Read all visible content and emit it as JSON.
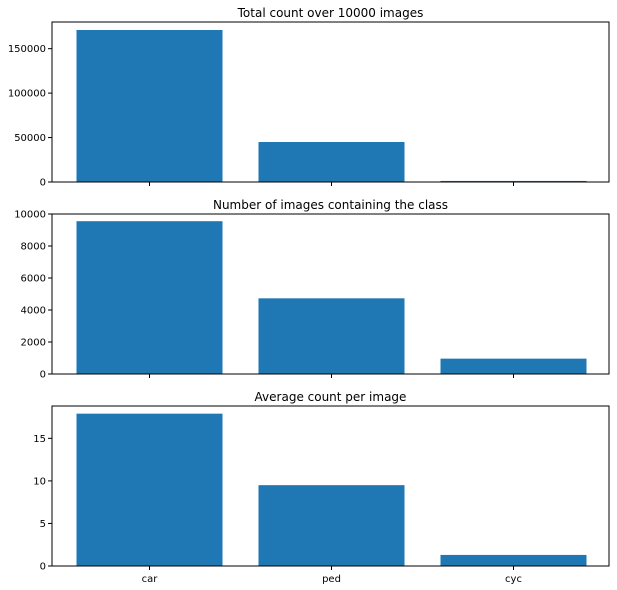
{
  "chart_data": [
    {
      "type": "bar",
      "title": "Total count over 10000 images",
      "categories": [
        "car",
        "ped",
        "cyc"
      ],
      "values": [
        171000,
        45000,
        1200
      ],
      "ylim": [
        0,
        180000
      ],
      "yticks": [
        0,
        50000,
        100000,
        150000
      ],
      "show_xticklabels": false,
      "bar_color": "#1f77b4",
      "grid": false,
      "xlabel": "",
      "ylabel": ""
    },
    {
      "type": "bar",
      "title": "Number of images containing the class",
      "categories": [
        "car",
        "ped",
        "cyc"
      ],
      "values": [
        9550,
        4730,
        960
      ],
      "ylim": [
        0,
        10000
      ],
      "yticks": [
        0,
        2000,
        4000,
        6000,
        8000,
        10000
      ],
      "show_xticklabels": false,
      "bar_color": "#1f77b4",
      "grid": false,
      "xlabel": "",
      "ylabel": ""
    },
    {
      "type": "bar",
      "title": "Average count per image",
      "categories": [
        "car",
        "ped",
        "cyc"
      ],
      "values": [
        17.9,
        9.5,
        1.3
      ],
      "ylim": [
        0,
        18.8
      ],
      "yticks": [
        0,
        5,
        10,
        15
      ],
      "show_xticklabels": true,
      "bar_color": "#1f77b4",
      "grid": false,
      "xlabel": "",
      "ylabel": ""
    }
  ]
}
